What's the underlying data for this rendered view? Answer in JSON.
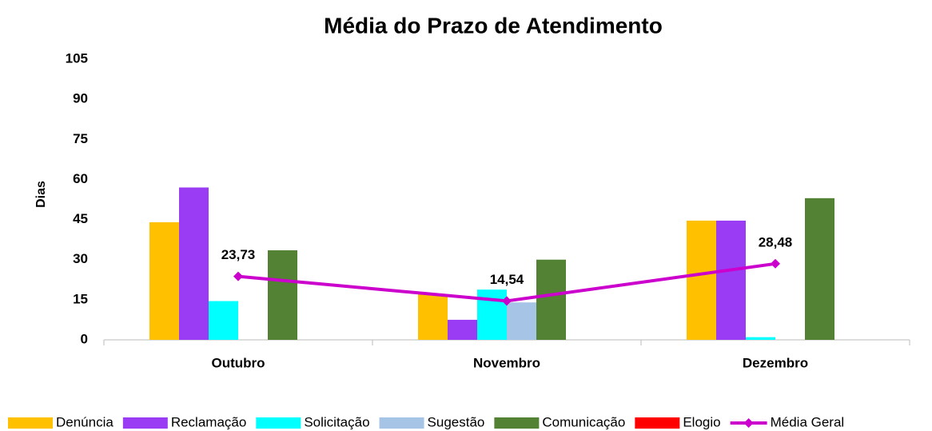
{
  "chart_data": {
    "type": "bar",
    "title": "Média do Prazo de Atendimento",
    "y_label": "Dias",
    "categories": [
      "Outubro",
      "Novembro",
      "Dezembro"
    ],
    "series": [
      {
        "name": "Denúncia",
        "color": "#ffc000",
        "values": [
          44,
          17,
          44.6
        ]
      },
      {
        "name": "Reclamação",
        "color": "#9b3cf5",
        "values": [
          57,
          7.5,
          44.6
        ]
      },
      {
        "name": "Solicitação",
        "color": "#00ffff",
        "values": [
          14.5,
          18.8,
          1
        ]
      },
      {
        "name": "Sugestão",
        "color": "#a6c4e6",
        "values": [
          null,
          14,
          null
        ]
      },
      {
        "name": "Comunicação",
        "color": "#548235",
        "values": [
          33.5,
          30,
          53
        ]
      },
      {
        "name": "Elogio",
        "color": "#ff0000",
        "values": [
          null,
          null,
          null
        ]
      },
      {
        "name": "Média Geral",
        "color": "#cc00cc",
        "type": "line",
        "values": [
          23.73,
          14.54,
          28.48
        ],
        "value_labels": [
          "23,73",
          "14,54",
          "28,48"
        ]
      }
    ],
    "ylim": [
      0,
      105
    ],
    "yticks": [
      0,
      15,
      30,
      45,
      60,
      75,
      90,
      105
    ],
    "grid": false
  }
}
